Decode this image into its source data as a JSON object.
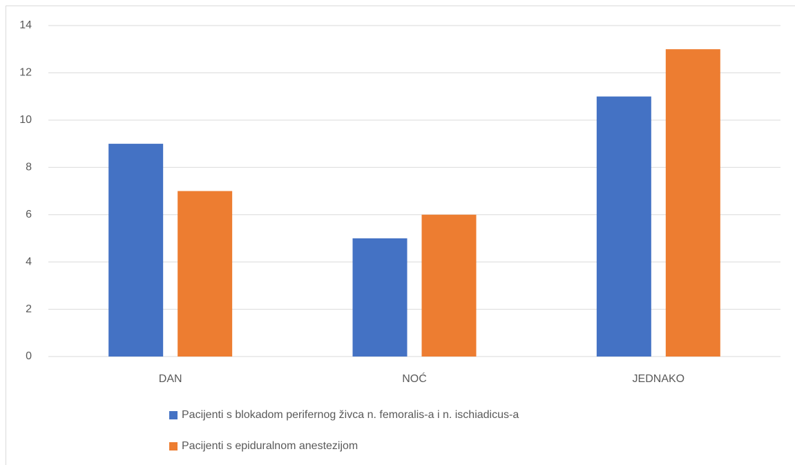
{
  "chart_data": {
    "type": "bar",
    "categories": [
      "DAN",
      "NOĆ",
      "JEDNAKO"
    ],
    "series": [
      {
        "name": "Pacijenti s blokadom perifernog živca n. femoralis-a i n. ischiadicus-a",
        "color": "#4472c4",
        "values": [
          9,
          5,
          11
        ]
      },
      {
        "name": "Pacijenti s epiduralnom anestezijom",
        "color": "#ed7d31",
        "values": [
          7,
          6,
          13
        ]
      }
    ],
    "ylim": [
      0,
      14
    ],
    "yticks": [
      0,
      2,
      4,
      6,
      8,
      10,
      12,
      14
    ],
    "grid": true,
    "legend": "bottom"
  }
}
